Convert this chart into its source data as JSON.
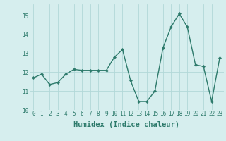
{
  "x": [
    0,
    1,
    2,
    3,
    4,
    5,
    6,
    7,
    8,
    9,
    10,
    11,
    12,
    13,
    14,
    15,
    16,
    17,
    18,
    19,
    20,
    21,
    22,
    23
  ],
  "y": [
    11.7,
    11.9,
    11.35,
    11.45,
    11.9,
    12.15,
    12.1,
    12.1,
    12.1,
    12.1,
    12.8,
    13.2,
    11.55,
    10.45,
    10.45,
    11.0,
    13.3,
    14.4,
    15.1,
    14.4,
    12.4,
    12.3,
    10.45,
    12.75
  ],
  "line_color": "#2d7a6b",
  "marker": "D",
  "marker_size": 2.2,
  "linewidth": 1.0,
  "bg_color": "#d6eeee",
  "grid_color": "#b2d8d8",
  "xlabel": "Humidex (Indice chaleur)",
  "ylim": [
    10,
    15.6
  ],
  "xlim": [
    -0.5,
    23.5
  ],
  "yticks": [
    10,
    11,
    12,
    13,
    14,
    15
  ],
  "xticks": [
    0,
    1,
    2,
    3,
    4,
    5,
    6,
    7,
    8,
    9,
    10,
    11,
    12,
    13,
    14,
    15,
    16,
    17,
    18,
    19,
    20,
    21,
    22,
    23
  ],
  "tick_fontsize": 5.5,
  "xlabel_fontsize": 7.5,
  "tick_color": "#2d7a6b",
  "xlabel_color": "#2d7a6b"
}
